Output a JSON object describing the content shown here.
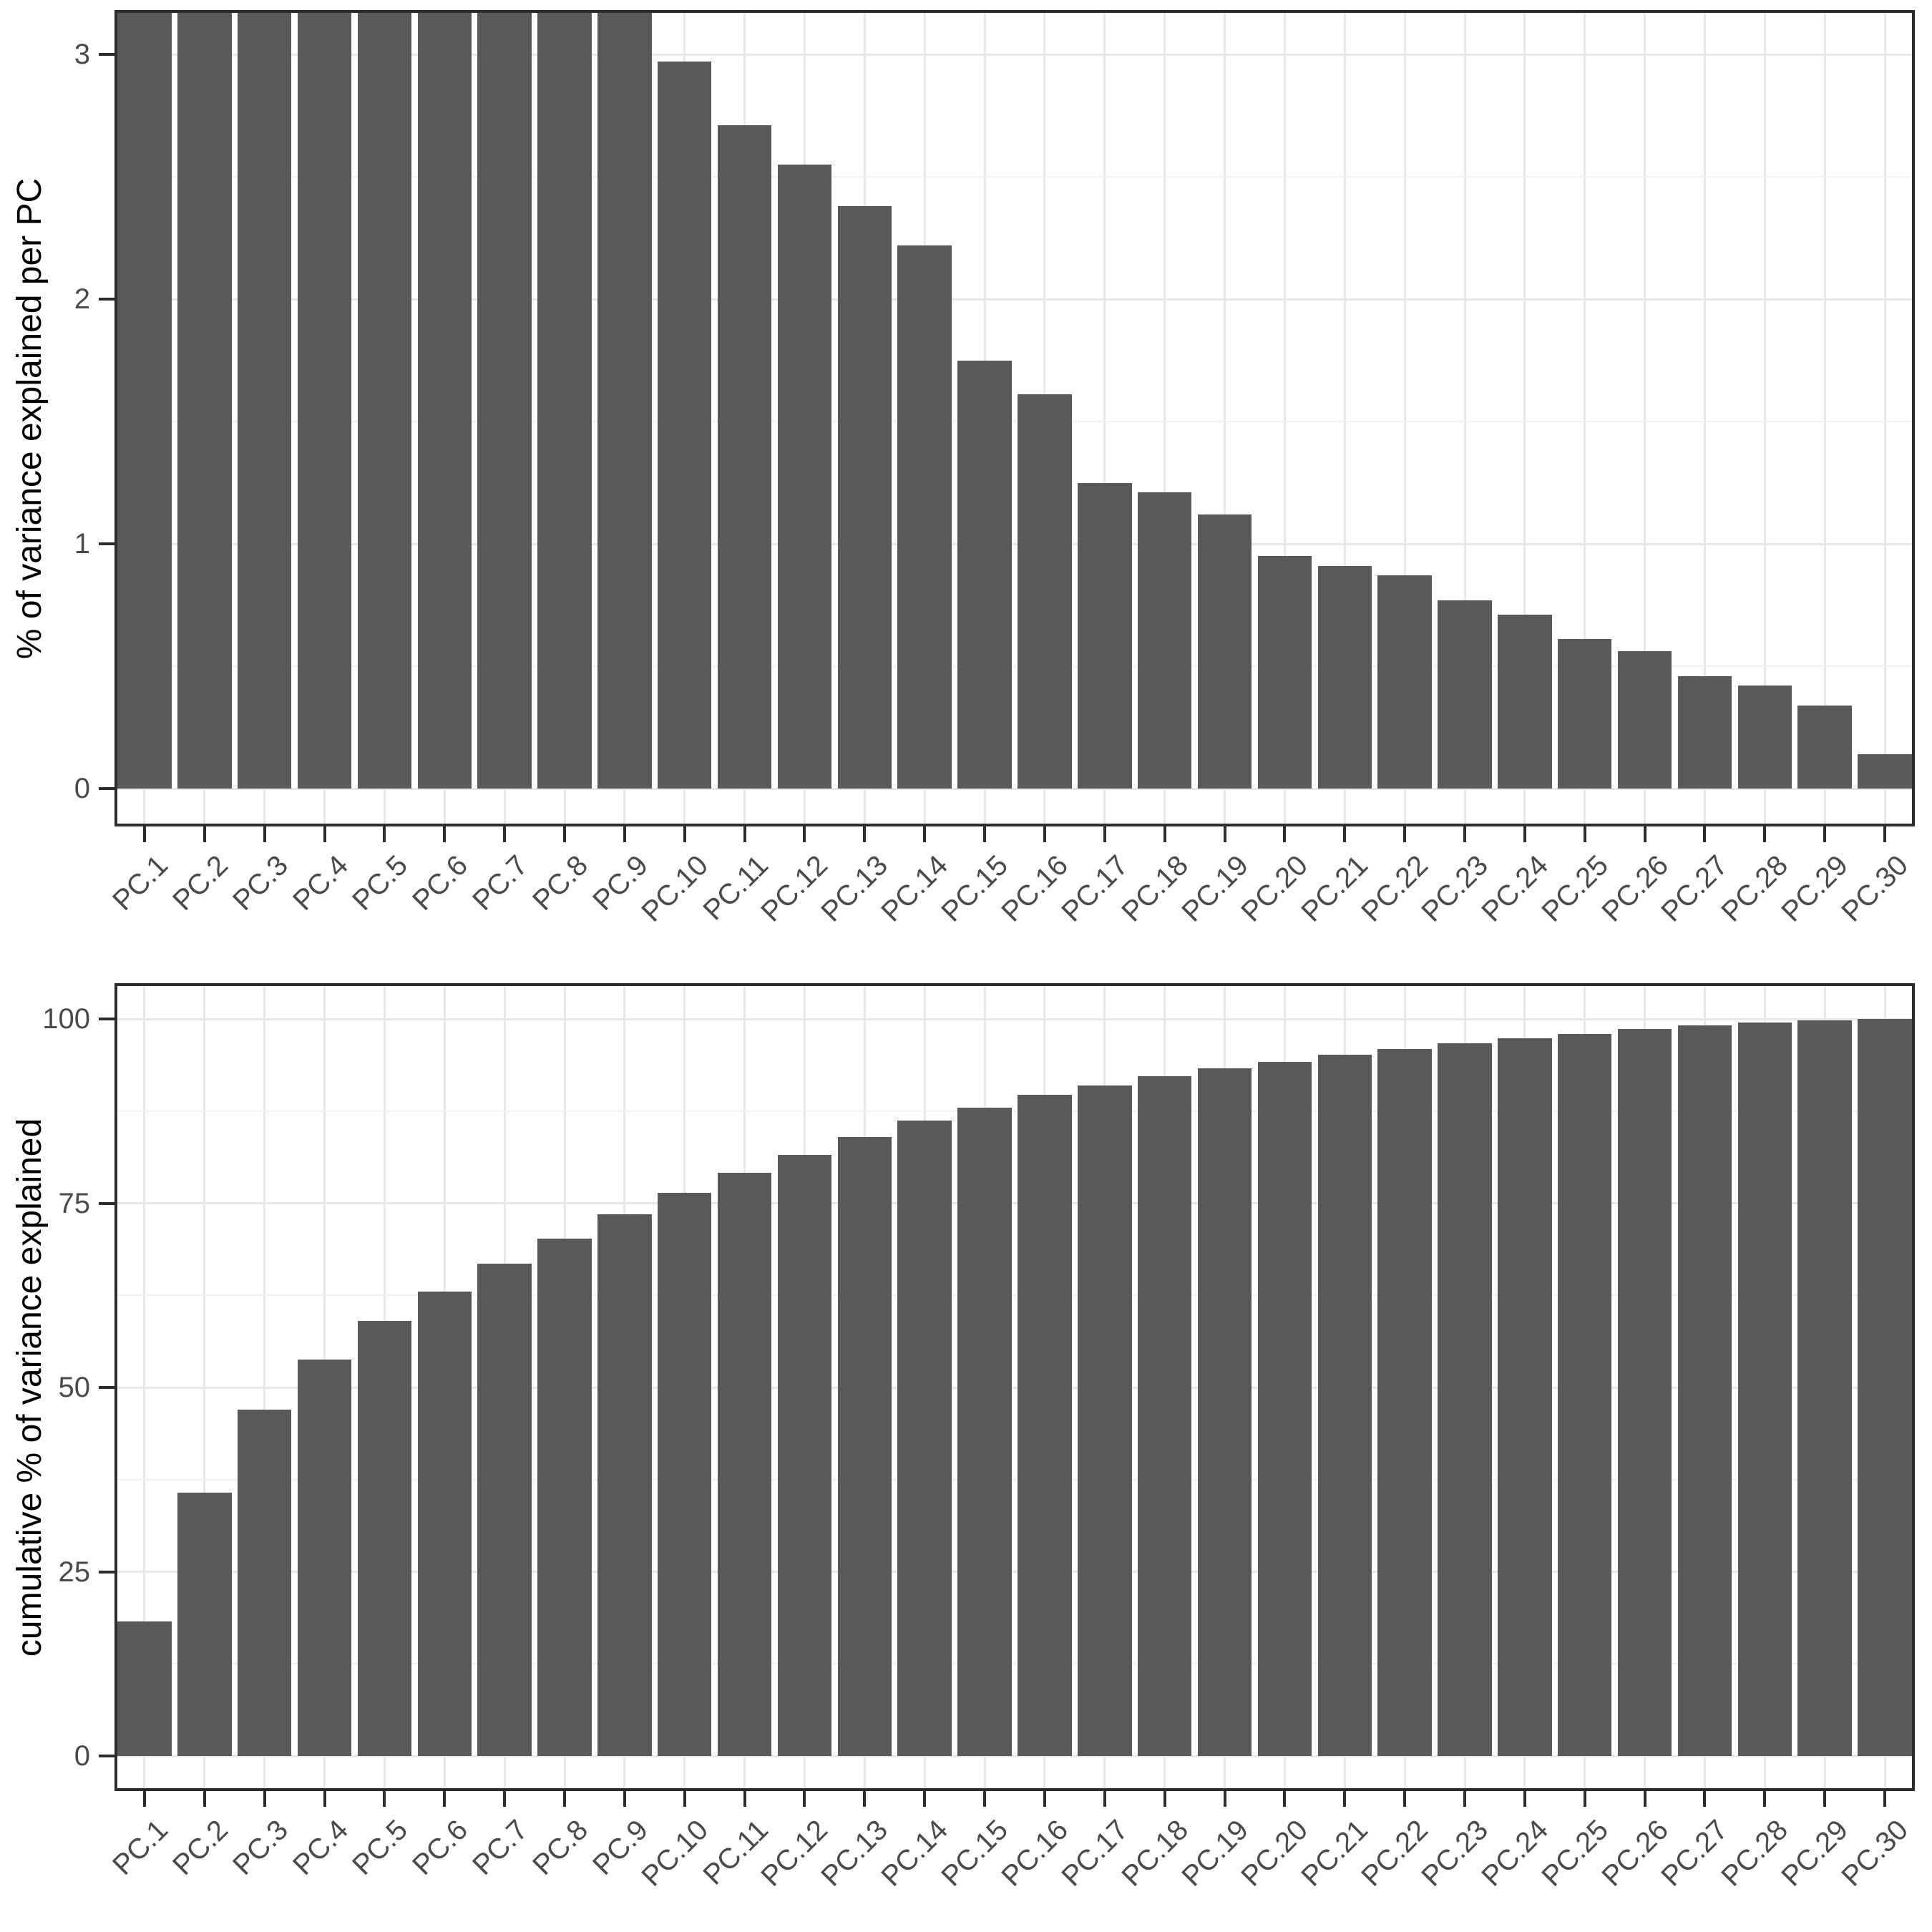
{
  "figure": {
    "description": "Two stacked bar charts (PCA scree plot): per-PC variance explained and cumulative variance explained across 30 principal components",
    "background": "#FFFFFF"
  },
  "colors": {
    "bar": "#595959",
    "grid_major": "#E8E8E8",
    "grid_minor": "#F2F2F2",
    "panel_border": "#2D2D2D",
    "axis_tick": "#2D2D2D",
    "tick_label": "#4A4A4A",
    "axis_title": "#000000"
  },
  "chart_data": [
    {
      "type": "bar",
      "title": "",
      "xlabel": "",
      "ylabel": "% of variance explained per PC",
      "categories": [
        "PC.1",
        "PC.2",
        "PC.3",
        "PC.4",
        "PC.5",
        "PC.6",
        "PC.7",
        "PC.8",
        "PC.9",
        "PC.10",
        "PC.11",
        "PC.12",
        "PC.13",
        "PC.14",
        "PC.15",
        "PC.16",
        "PC.17",
        "PC.18",
        "PC.19",
        "PC.20",
        "PC.21",
        "PC.22",
        "PC.23",
        "PC.24",
        "PC.25",
        "PC.26",
        "PC.27",
        "PC.28",
        "PC.29",
        "PC.30"
      ],
      "values": [
        null,
        null,
        null,
        null,
        null,
        null,
        null,
        null,
        null,
        2.97,
        2.71,
        2.55,
        2.38,
        2.22,
        1.75,
        1.61,
        1.25,
        1.21,
        1.12,
        0.95,
        0.91,
        0.87,
        0.77,
        0.71,
        0.61,
        0.56,
        0.46,
        0.42,
        0.34,
        0.14
      ],
      "clipped_above_ylim": [
        "PC.1",
        "PC.2",
        "PC.3",
        "PC.4",
        "PC.5",
        "PC.6",
        "PC.7",
        "PC.8",
        "PC.9"
      ],
      "note": "Bars PC.1 through PC.9 exceed the y-axis upper limit and are clipped flat at the top of the panel.",
      "ylim": [
        0,
        3.18
      ],
      "ytick_values": [
        0,
        1,
        2,
        3
      ],
      "ytick_labels": [
        "0",
        "1",
        "2",
        "3"
      ],
      "yminor_values": [
        0.5,
        1.5,
        2.5
      ],
      "grid": "on",
      "legend": "none",
      "bar_color": "#595959"
    },
    {
      "type": "bar",
      "title": "",
      "xlabel": "",
      "ylabel": "cumulative % of variance explained",
      "categories": [
        "PC.1",
        "PC.2",
        "PC.3",
        "PC.4",
        "PC.5",
        "PC.6",
        "PC.7",
        "PC.8",
        "PC.9",
        "PC.10",
        "PC.11",
        "PC.12",
        "PC.13",
        "PC.14",
        "PC.15",
        "PC.16",
        "PC.17",
        "PC.18",
        "PC.19",
        "PC.20",
        "PC.21",
        "PC.22",
        "PC.23",
        "PC.24",
        "PC.25",
        "PC.26",
        "PC.27",
        "PC.28",
        "PC.29",
        "PC.30"
      ],
      "values": [
        18.3,
        35.7,
        47.0,
        53.8,
        59.0,
        63.0,
        66.8,
        70.2,
        73.5,
        76.4,
        79.1,
        81.6,
        84.0,
        86.2,
        88.0,
        89.7,
        91.0,
        92.2,
        93.3,
        94.2,
        95.1,
        95.9,
        96.7,
        97.4,
        98.0,
        98.6,
        99.1,
        99.5,
        99.8,
        100.0
      ],
      "ylim": [
        0,
        105
      ],
      "ytick_values": [
        0,
        25,
        50,
        75,
        100
      ],
      "ytick_labels": [
        "0",
        "25",
        "50",
        "75",
        "100"
      ],
      "yminor_values": [
        12.5,
        37.5,
        62.5,
        87.5
      ],
      "grid": "on",
      "legend": "none",
      "bar_color": "#595959"
    }
  ]
}
